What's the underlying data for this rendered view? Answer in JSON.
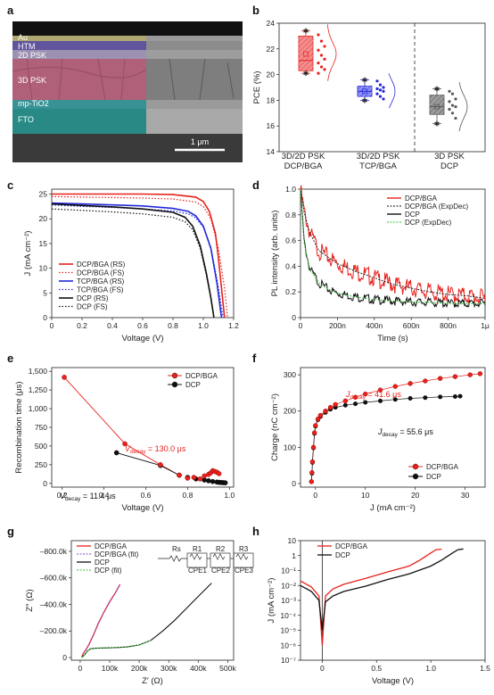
{
  "panels": {
    "a": {
      "label": "a",
      "layers": [
        "Au",
        "HTM",
        "2D PSK",
        "3D PSK",
        "mp-TiO2",
        "FTO"
      ],
      "scale_bar": "1 μm"
    },
    "b": {
      "label": "b",
      "ylabel": "PCE (%)",
      "yticks": [
        "14",
        "16",
        "18",
        "20",
        "22",
        "24"
      ],
      "groups": [
        {
          "line1": "3D/2D PSK",
          "line2": "DCP/BGA"
        },
        {
          "line1": "3D/2D PSK",
          "line2": "TCP/BGA"
        },
        {
          "line1": "3D PSK",
          "line2": "DCP"
        }
      ]
    },
    "c": {
      "label": "c",
      "xlabel": "Voltage (V)",
      "ylabel": "J (mA cm⁻²)",
      "xticks": [
        "0",
        "0.2",
        "0.4",
        "0.6",
        "0.8",
        "1.0",
        "1.2"
      ],
      "yticks": [
        "0",
        "5",
        "10",
        "15",
        "20",
        "25"
      ],
      "legend": [
        "DCP/BGA (RS)",
        "DCP/BGA (FS)",
        "TCP/BGA (RS)",
        "TCP/BGA (FS)",
        "DCP (RS)",
        "DCP (FS)"
      ]
    },
    "d": {
      "label": "d",
      "xlabel": "Time (s)",
      "ylabel": "PL intensity (arb. units)",
      "xticks": [
        "0",
        "200n",
        "400n",
        "600n",
        "800n",
        "1μ"
      ],
      "yticks": [
        "0",
        "0.2",
        "0.4",
        "0.6",
        "0.8",
        "1.0"
      ],
      "legend": [
        "DCP/BGA",
        "DCP/BGA (ExpDec)",
        "DCP",
        "DCP (ExpDec)"
      ]
    },
    "e": {
      "label": "e",
      "xlabel": "Voltage (V)",
      "ylabel": "Recombination time (μs)",
      "xticks": [
        "0.2",
        "0.4",
        "0.6",
        "0.8",
        "1.0"
      ],
      "yticks": [
        "0",
        "250",
        "500",
        "750",
        "1,000",
        "1,250",
        "1,500"
      ],
      "legend": [
        "DCP/BGA",
        "DCP"
      ],
      "ann1_a": "V",
      "ann1_b": "decay",
      "ann1_c": " = 130.0 μs",
      "ann2_a": "V",
      "ann2_b": "decay",
      "ann2_c": " = 11.4 μs"
    },
    "f": {
      "label": "f",
      "xlabel": "J (mA cm⁻²)",
      "ylabel": "Charge (nC cm⁻²)",
      "xticks": [
        "0",
        "10",
        "20",
        "30"
      ],
      "yticks": [
        "0",
        "100",
        "200",
        "300"
      ],
      "legend": [
        "DCP/BGA",
        "DCP"
      ],
      "ann1_a": "J",
      "ann1_b": "decay",
      "ann1_c": " = 41.6 μs",
      "ann2_a": "J",
      "ann2_b": "decay",
      "ann2_c": " = 55.6 μs"
    },
    "g": {
      "label": "g",
      "xlabel": "Z′ (Ω)",
      "ylabel": "Z″ (Ω)",
      "xticks": [
        "0",
        "100k",
        "200k",
        "300k",
        "400k",
        "500k"
      ],
      "yticks": [
        "0",
        "–200.0k",
        "–400.0k",
        "–600.0k",
        "–800.0k"
      ],
      "legend": [
        "DCP/BGA",
        "DCP/BGA (fit)",
        "DCP",
        "DCP (fit)"
      ],
      "circuit": [
        "Rs",
        "R1",
        "R2",
        "R3",
        "CPE1",
        "CPE2",
        "CPE3"
      ]
    },
    "h": {
      "label": "h",
      "xlabel": "Voltage (V)",
      "ylabel": "J (mA cm⁻²)",
      "xticks": [
        "0",
        "0.5",
        "1.0",
        "1.5"
      ],
      "yticks": [
        "10",
        "1",
        "10⁻¹",
        "10⁻²",
        "10⁻³",
        "10⁻⁴",
        "10⁻⁵",
        "10⁻⁶",
        "10⁻⁷"
      ],
      "legend": [
        "DCP/BGA",
        "DCP"
      ]
    }
  },
  "colors": {
    "red": "#e8211c",
    "blue": "#2328d9",
    "black": "#111111",
    "green": "#3cc23c",
    "purple": "#8a4ad0",
    "grey": "#888888"
  },
  "chart_data": [
    {
      "type": "box",
      "panel": "b",
      "ylabel": "PCE (%)",
      "ylim": [
        14,
        24
      ],
      "series": [
        {
          "group": "3D/2D PSK DCP/BGA",
          "q1": 20.3,
          "median": 21.1,
          "q3": 23.0,
          "mean": 21.6,
          "min": 20.1,
          "max": 23.4,
          "points": [
            23.1,
            22.6,
            22.2,
            21.9,
            21.5,
            21.2,
            20.9,
            20.6,
            20.4,
            20.1
          ]
        },
        {
          "group": "3D/2D PSK TCP/BGA",
          "q1": 18.3,
          "median": 18.7,
          "q3": 19.1,
          "mean": 18.7,
          "min": 18.0,
          "max": 19.6,
          "points": [
            19.5,
            19.2,
            19.0,
            18.9,
            18.8,
            18.7,
            18.5,
            18.3,
            18.1
          ]
        },
        {
          "group": "3D PSK DCP",
          "q1": 16.9,
          "median": 17.5,
          "q3": 18.4,
          "mean": 17.5,
          "min": 16.2,
          "max": 18.9,
          "points": [
            18.7,
            18.5,
            18.1,
            17.9,
            17.6,
            17.5,
            17.3,
            17.0,
            16.6
          ]
        }
      ]
    },
    {
      "type": "line",
      "panel": "c",
      "xlabel": "Voltage (V)",
      "ylabel": "J (mA cm⁻²)",
      "xlim": [
        0,
        1.2
      ],
      "ylim": [
        0,
        26
      ],
      "series": [
        {
          "name": "DCP/BGA (RS)",
          "x": [
            0,
            0.2,
            0.4,
            0.6,
            0.8,
            0.95,
            1.0,
            1.04,
            1.08,
            1.1,
            1.12,
            1.14
          ],
          "y": [
            25.0,
            25.0,
            25.0,
            25.0,
            24.9,
            24.4,
            23.5,
            21.5,
            17.0,
            12.0,
            6.0,
            0
          ]
        },
        {
          "name": "DCP/BGA (FS)",
          "x": [
            0,
            0.2,
            0.4,
            0.6,
            0.8,
            0.95,
            1.0,
            1.05,
            1.1,
            1.14,
            1.16
          ],
          "y": [
            24.5,
            24.4,
            24.3,
            24.2,
            24.0,
            23.4,
            22.5,
            20.0,
            14.0,
            6.0,
            0
          ]
        },
        {
          "name": "TCP/BGA (RS)",
          "x": [
            0,
            0.2,
            0.4,
            0.6,
            0.8,
            0.9,
            0.95,
            1.0,
            1.05,
            1.09,
            1.12
          ],
          "y": [
            23.2,
            23.0,
            22.8,
            22.6,
            22.1,
            21.5,
            20.6,
            18.5,
            14.0,
            7.0,
            0
          ]
        },
        {
          "name": "TCP/BGA (FS)",
          "x": [
            0,
            0.2,
            0.4,
            0.6,
            0.8,
            0.9,
            0.95,
            1.0,
            1.05,
            1.1,
            1.13
          ],
          "y": [
            22.8,
            22.5,
            22.3,
            22.0,
            21.6,
            21.0,
            20.2,
            18.3,
            14.2,
            6.0,
            0
          ]
        },
        {
          "name": "DCP (RS)",
          "x": [
            0,
            0.2,
            0.4,
            0.6,
            0.8,
            0.88,
            0.93,
            0.98,
            1.02,
            1.05,
            1.07
          ],
          "y": [
            23.0,
            22.7,
            22.4,
            22.0,
            21.3,
            20.3,
            18.5,
            14.5,
            9.0,
            4.0,
            0
          ]
        },
        {
          "name": "DCP (FS)",
          "x": [
            0,
            0.2,
            0.4,
            0.6,
            0.8,
            0.88,
            0.93,
            0.98,
            1.02,
            1.05,
            1.07
          ],
          "y": [
            22.0,
            21.7,
            21.4,
            21.0,
            20.3,
            19.4,
            17.8,
            14.0,
            8.6,
            3.8,
            0
          ]
        }
      ]
    },
    {
      "type": "line",
      "panel": "d",
      "xlabel": "Time (s)",
      "ylabel": "PL intensity (arb. units)",
      "xlim": [
        0,
        1e-06
      ],
      "ylim": [
        0,
        1.0
      ],
      "series": [
        {
          "name": "DCP/BGA",
          "x": [
            0,
            2e-08,
            5e-08,
            1e-07,
            2e-07,
            3e-07,
            4e-07,
            5e-07,
            6e-07,
            7e-07,
            8e-07,
            9e-07,
            1e-06
          ],
          "y": [
            1.0,
            0.82,
            0.66,
            0.52,
            0.42,
            0.36,
            0.31,
            0.26,
            0.23,
            0.2,
            0.18,
            0.17,
            0.15
          ]
        },
        {
          "name": "DCP/BGA (ExpDec)",
          "x": [
            0,
            2e-08,
            5e-08,
            1e-07,
            2e-07,
            3e-07,
            4e-07,
            5e-07,
            6e-07,
            7e-07,
            8e-07,
            9e-07,
            1e-06
          ],
          "y": [
            1.0,
            0.82,
            0.66,
            0.52,
            0.42,
            0.36,
            0.31,
            0.26,
            0.23,
            0.2,
            0.18,
            0.17,
            0.15
          ]
        },
        {
          "name": "DCP",
          "x": [
            0,
            2e-08,
            5e-08,
            1e-07,
            1.5e-07,
            2e-07,
            3e-07,
            4e-07,
            5e-07,
            6e-07,
            7e-07,
            8e-07,
            1e-06
          ],
          "y": [
            1.0,
            0.58,
            0.38,
            0.27,
            0.22,
            0.19,
            0.16,
            0.14,
            0.13,
            0.12,
            0.12,
            0.11,
            0.11
          ]
        },
        {
          "name": "DCP (ExpDec)",
          "x": [
            0,
            2e-08,
            5e-08,
            1e-07,
            1.5e-07,
            2e-07,
            3e-07,
            4e-07,
            5e-07,
            6e-07,
            7e-07,
            8e-07,
            1e-06
          ],
          "y": [
            1.0,
            0.58,
            0.38,
            0.27,
            0.22,
            0.19,
            0.16,
            0.14,
            0.13,
            0.12,
            0.12,
            0.11,
            0.11
          ]
        }
      ]
    },
    {
      "type": "scatter",
      "panel": "e",
      "xlabel": "Voltage (V)",
      "ylabel": "Recombination time (μs)",
      "xlim": [
        0.15,
        1.02
      ],
      "ylim": [
        -50,
        1550
      ],
      "series": [
        {
          "name": "DCP/BGA",
          "x": [
            0.21,
            0.5,
            0.67,
            0.76,
            0.8,
            0.83,
            0.86,
            0.88,
            0.9,
            0.91,
            0.92,
            0.93,
            0.94,
            0.95
          ],
          "y": [
            1420,
            530,
            250,
            110,
            70,
            80,
            60,
            100,
            120,
            140,
            170,
            160,
            150,
            130
          ]
        },
        {
          "name": "DCP",
          "x": [
            0.46,
            0.67,
            0.76,
            0.8,
            0.84,
            0.88,
            0.9,
            0.92,
            0.94,
            0.95,
            0.96,
            0.97,
            0.98
          ],
          "y": [
            410,
            240,
            110,
            80,
            60,
            45,
            35,
            25,
            18,
            14,
            12,
            10,
            8
          ]
        }
      ]
    },
    {
      "type": "scatter",
      "panel": "f",
      "xlabel": "J (mA cm⁻²)",
      "ylabel": "Charge (nC cm⁻²)",
      "xlim": [
        -3,
        34
      ],
      "ylim": [
        -10,
        320
      ],
      "series": [
        {
          "name": "DCP/BGA",
          "x": [
            -0.8,
            -0.7,
            -0.6,
            -0.4,
            -0.2,
            0,
            0.5,
            1,
            2,
            3,
            4,
            6,
            8,
            10,
            13,
            16,
            19,
            22,
            25,
            28,
            31,
            33
          ],
          "y": [
            5,
            30,
            60,
            100,
            140,
            160,
            178,
            188,
            200,
            210,
            218,
            228,
            238,
            247,
            258,
            268,
            276,
            283,
            290,
            295,
            300,
            303
          ]
        },
        {
          "name": "DCP",
          "x": [
            -0.8,
            -0.7,
            -0.6,
            -0.4,
            -0.2,
            0,
            0.5,
            1,
            2,
            3,
            4,
            6,
            8,
            10,
            13,
            16,
            19,
            22,
            25,
            28,
            29
          ],
          "y": [
            5,
            28,
            58,
            98,
            138,
            158,
            176,
            185,
            196,
            205,
            210,
            216,
            220,
            224,
            228,
            232,
            235,
            237,
            239,
            240,
            241
          ]
        }
      ]
    },
    {
      "type": "line",
      "panel": "g",
      "xlabel": "Z′ (Ω)",
      "ylabel": "Z″ (Ω)",
      "xlim": [
        -30000,
        520000
      ],
      "ylim": [
        20000,
        -880000
      ],
      "series": [
        {
          "name": "DCP/BGA",
          "x": [
            5000,
            10000,
            20000,
            30000,
            45000,
            60000,
            80000,
            100000,
            120000,
            135000
          ],
          "y": [
            0,
            -30000,
            -60000,
            -100000,
            -170000,
            -250000,
            -340000,
            -420000,
            -490000,
            -550000
          ]
        },
        {
          "name": "DCP/BGA (fit)",
          "x": [
            5000,
            10000,
            20000,
            30000,
            45000,
            60000,
            80000,
            100000,
            120000,
            135000
          ],
          "y": [
            0,
            -30000,
            -60000,
            -100000,
            -170000,
            -250000,
            -340000,
            -420000,
            -490000,
            -550000
          ]
        },
        {
          "name": "DCP",
          "x": [
            5000,
            15000,
            25000,
            35000,
            50000,
            80000,
            120000,
            160000,
            200000,
            240000,
            280000,
            320000,
            360000,
            400000,
            445000
          ],
          "y": [
            0,
            -20000,
            -50000,
            -65000,
            -70000,
            -72000,
            -75000,
            -80000,
            -95000,
            -130000,
            -200000,
            -280000,
            -370000,
            -460000,
            -560000
          ]
        },
        {
          "name": "DCP (fit)",
          "x": [
            5000,
            15000,
            25000,
            35000,
            50000,
            80000,
            120000,
            160000,
            200000,
            240000
          ],
          "y": [
            0,
            -20000,
            -50000,
            -65000,
            -70000,
            -72000,
            -75000,
            -80000,
            -95000,
            -130000
          ]
        }
      ]
    },
    {
      "type": "line",
      "panel": "h",
      "xlabel": "Voltage (V)",
      "ylabel": "J (mA cm⁻²)",
      "yscale": "log",
      "xlim": [
        -0.2,
        1.5
      ],
      "ylim": [
        1e-07,
        10
      ],
      "series": [
        {
          "name": "DCP/BGA",
          "x": [
            -0.2,
            -0.1,
            -0.03,
            0,
            0.03,
            0.1,
            0.2,
            0.4,
            0.6,
            0.8,
            0.9,
            1.0,
            1.05,
            1.1
          ],
          "y": [
            0.02,
            0.008,
            0.002,
            1e-06,
            0.002,
            0.006,
            0.012,
            0.03,
            0.08,
            0.2,
            0.5,
            1.5,
            2.5,
            2.7
          ]
        },
        {
          "name": "DCP",
          "x": [
            -0.2,
            -0.1,
            -0.03,
            0,
            0.03,
            0.1,
            0.2,
            0.4,
            0.6,
            0.8,
            1.0,
            1.1,
            1.2,
            1.25,
            1.3
          ],
          "y": [
            0.01,
            0.004,
            0.001,
            1e-05,
            0.0008,
            0.002,
            0.004,
            0.009,
            0.025,
            0.06,
            0.2,
            0.5,
            1.5,
            2.5,
            2.8
          ]
        }
      ]
    }
  ]
}
